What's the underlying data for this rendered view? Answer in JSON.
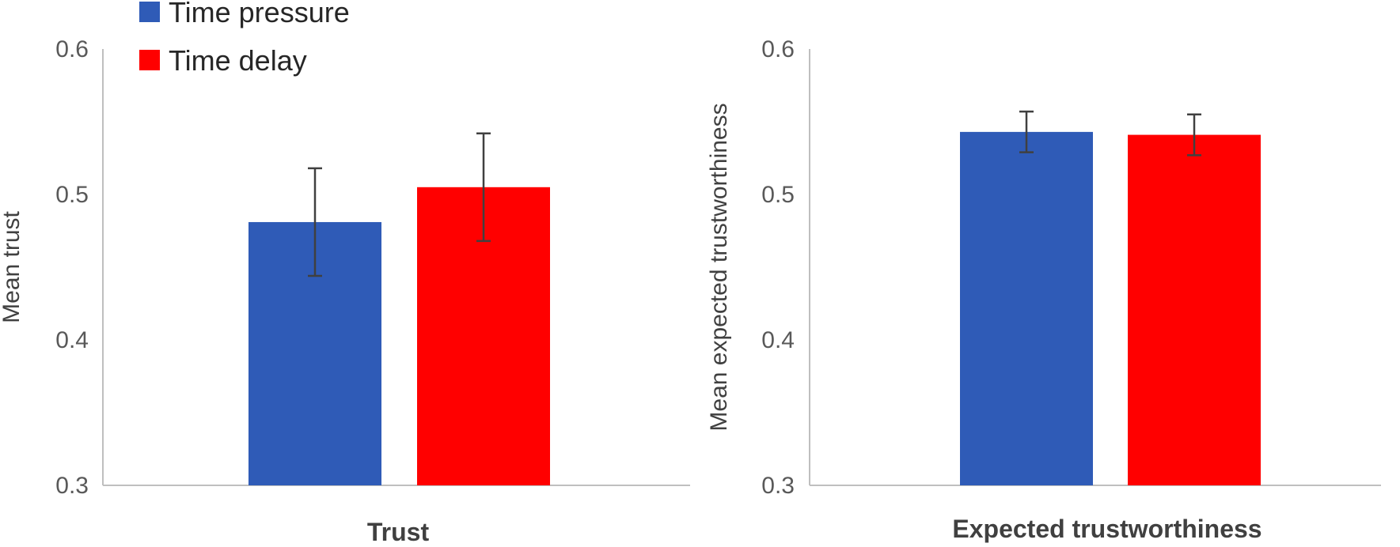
{
  "legend": [
    {
      "name": "Time pressure",
      "color": "#2f5bb7"
    },
    {
      "name": "Time delay",
      "color": "#ff0000"
    }
  ],
  "chart_data": [
    {
      "type": "bar",
      "categories": [
        "Trust"
      ],
      "series": [
        {
          "name": "Time pressure",
          "color": "#2f5bb7",
          "values": [
            0.481
          ],
          "error": [
            0.037
          ]
        },
        {
          "name": "Time delay",
          "color": "#ff0000",
          "values": [
            0.505
          ],
          "error": [
            0.037
          ]
        }
      ],
      "xlabel": "Trust",
      "ylabel": "Mean trust",
      "ylim": [
        0.3,
        0.6
      ],
      "yticks": [
        "0.3",
        "0.4",
        "0.5",
        "0.6"
      ],
      "grid": false,
      "legend_position": "top-left"
    },
    {
      "type": "bar",
      "categories": [
        "Expected trustworthiness"
      ],
      "series": [
        {
          "name": "Time pressure",
          "color": "#2f5bb7",
          "values": [
            0.543
          ],
          "error": [
            0.014
          ]
        },
        {
          "name": "Time delay",
          "color": "#ff0000",
          "values": [
            0.541
          ],
          "error": [
            0.014
          ]
        }
      ],
      "xlabel": "Expected trustworthiness",
      "ylabel": "Mean expected trustworthiness",
      "ylim": [
        0.3,
        0.6
      ],
      "yticks": [
        "0.3",
        "0.4",
        "0.5",
        "0.6"
      ],
      "grid": false
    }
  ]
}
